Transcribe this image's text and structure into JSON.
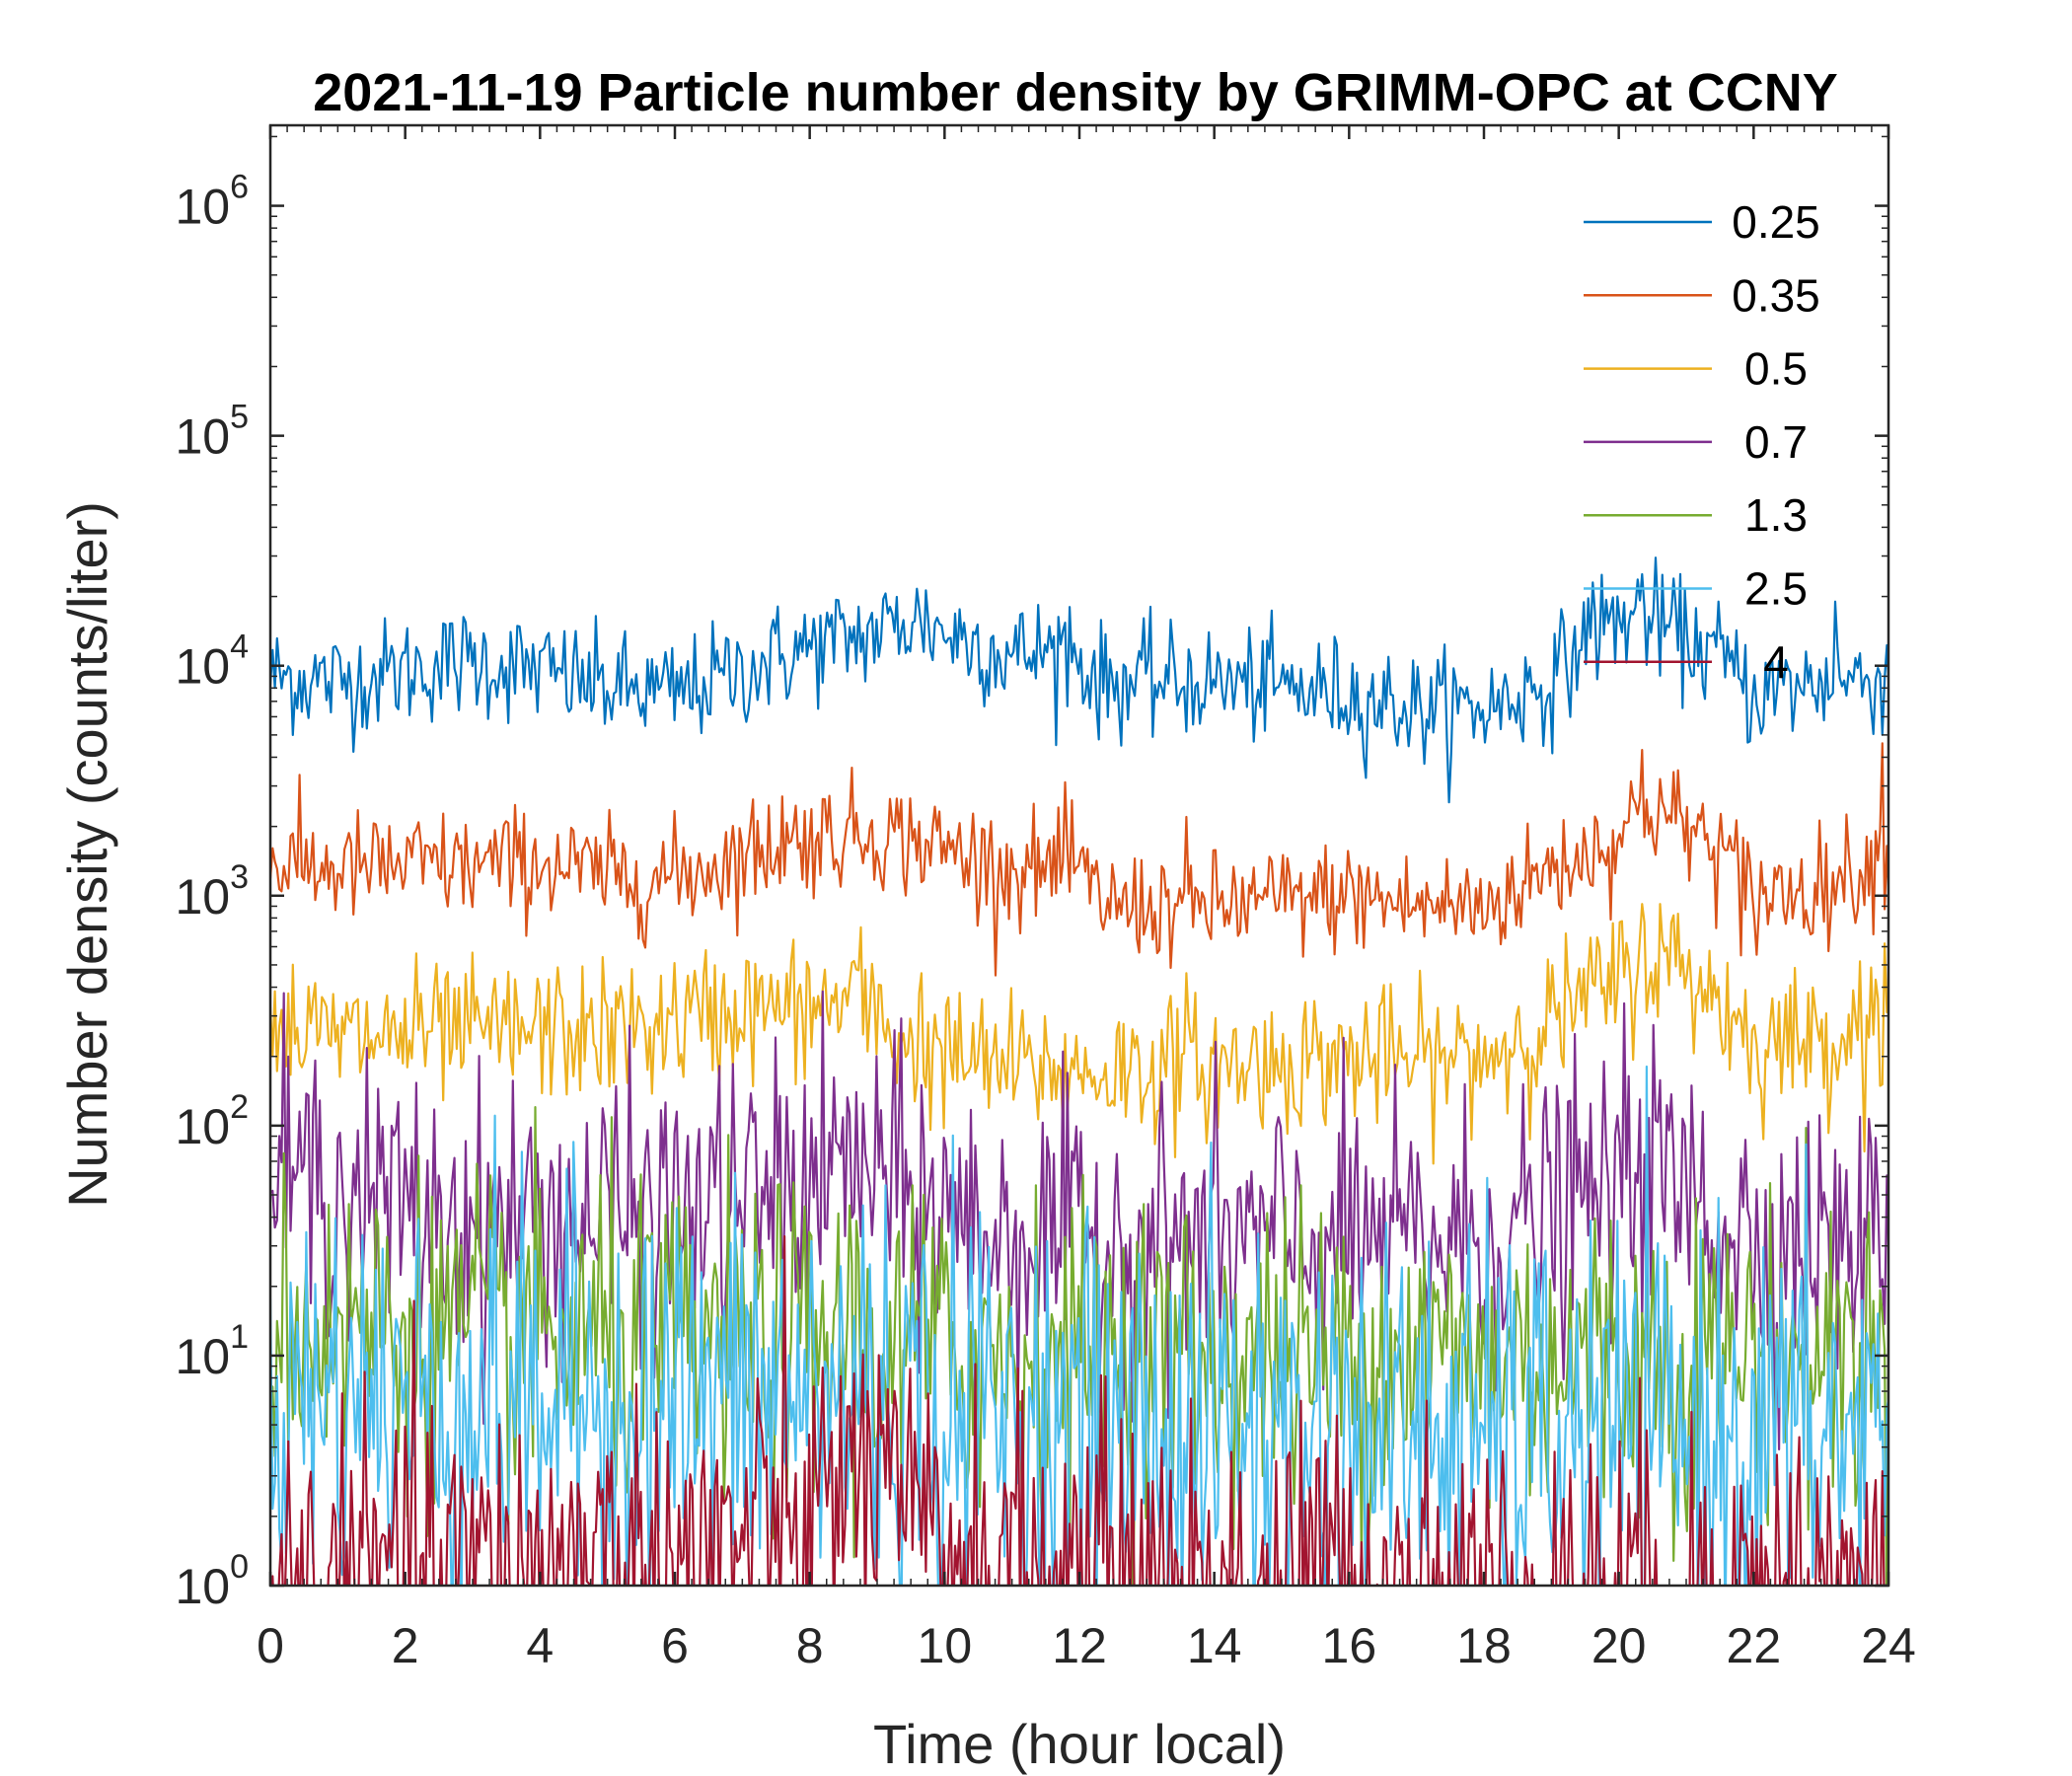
{
  "chart_data": {
    "type": "line",
    "title": "2021-11-19 Particle number density by GRIMM-OPC at CCNY",
    "xlabel": "Time (hour local)",
    "ylabel": "Number density (counts/liter)",
    "xlim": [
      0,
      24
    ],
    "ylim_log10": [
      0,
      6.35
    ],
    "yscale": "log",
    "x_ticks": [
      0,
      2,
      4,
      6,
      8,
      10,
      12,
      14,
      16,
      18,
      20,
      22,
      24
    ],
    "x_tick_labels": [
      "0",
      "2",
      "4",
      "6",
      "8",
      "10",
      "12",
      "14",
      "16",
      "18",
      "20",
      "22",
      "24"
    ],
    "y_ticks_log10": [
      0,
      1,
      2,
      3,
      4,
      5,
      6
    ],
    "y_tick_base": "10",
    "y_tick_exponents": [
      "0",
      "1",
      "2",
      "3",
      "4",
      "5",
      "6"
    ],
    "grid": false,
    "legend_position": "top-right",
    "sample_step_hours": 0.0333,
    "series": [
      {
        "name": "0.25",
        "color": "#0072BD",
        "hours": [
          0,
          1,
          2,
          3,
          4,
          5,
          6,
          7,
          8,
          9,
          9.6,
          10,
          11,
          11.8,
          12.3,
          13,
          14,
          15,
          16,
          17,
          18,
          19,
          19.6,
          20.3,
          21,
          21.5,
          22,
          23,
          24
        ],
        "values": [
          9000,
          8500,
          9500,
          10500,
          9500,
          8000,
          7500,
          9500,
          12000,
          14000,
          16000,
          14000,
          11000,
          12000,
          8500,
          8500,
          8500,
          8000,
          7500,
          6500,
          6500,
          8500,
          14000,
          17000,
          13000,
          11000,
          7500,
          8500,
          9000
        ],
        "noise": 0.12,
        "spikes": [
          {
            "hour": 11.85,
            "value": 18000
          },
          {
            "hour": 20.35,
            "value": 25000
          },
          {
            "hour": 19.6,
            "value": 23000
          },
          {
            "hour": 23.2,
            "value": 19000
          }
        ]
      },
      {
        "name": "0.35",
        "color": "#D95319",
        "hours": [
          0,
          1,
          2,
          3,
          4,
          5,
          6,
          7,
          8,
          9,
          10,
          11,
          11.8,
          12.5,
          13,
          14,
          15,
          16,
          17,
          18,
          19,
          20,
          20.4,
          21,
          21.6,
          22,
          23,
          24
        ],
        "values": [
          1400,
          1300,
          1350,
          1350,
          1400,
          1200,
          1200,
          1500,
          1800,
          1900,
          1600,
          1300,
          1300,
          900,
          900,
          900,
          950,
          1000,
          900,
          900,
          1300,
          1800,
          2500,
          2000,
          1500,
          1000,
          1100,
          1500
        ],
        "noise": 0.12,
        "spikes": [
          {
            "hour": 7.6,
            "value": 2700
          },
          {
            "hour": 11.9,
            "value": 2600
          },
          {
            "hour": 13.6,
            "value": 2200
          },
          {
            "hour": 20.35,
            "value": 4300
          },
          {
            "hour": 23.9,
            "value": 4600
          },
          {
            "hour": 21.8,
            "value": 550
          }
        ]
      },
      {
        "name": "0.5",
        "color": "#EDB120",
        "hours": [
          0,
          1,
          2,
          3,
          4,
          5,
          6,
          7,
          8,
          8.7,
          9.5,
          10,
          11,
          12,
          13,
          14,
          15,
          16,
          17,
          18,
          19,
          20,
          20.5,
          21,
          21.6,
          22,
          23,
          24
        ],
        "values": [
          280,
          240,
          250,
          250,
          260,
          250,
          280,
          320,
          320,
          360,
          220,
          200,
          180,
          170,
          180,
          180,
          190,
          200,
          190,
          200,
          290,
          430,
          550,
          480,
          320,
          230,
          240,
          310
        ],
        "noise": 0.15,
        "spikes": [
          {
            "hour": 8.65,
            "value": 520
          },
          {
            "hour": 9.65,
            "value": 460
          },
          {
            "hour": 13.6,
            "value": 460
          },
          {
            "hour": 20.35,
            "value": 920
          },
          {
            "hour": 23.95,
            "value": 620
          }
        ]
      },
      {
        "name": "0.7",
        "color": "#7E2F8E",
        "hours": [
          0,
          1,
          2,
          3,
          4,
          5,
          6,
          7,
          8,
          8.7,
          9.5,
          10,
          11,
          12,
          13,
          14,
          15,
          16,
          17,
          18,
          19,
          20,
          20.5,
          21,
          22,
          23,
          24
        ],
        "values": [
          65,
          52,
          42,
          38,
          40,
          40,
          42,
          48,
          55,
          70,
          45,
          40,
          33,
          32,
          32,
          31,
          31,
          31,
          31,
          32,
          40,
          55,
          60,
          48,
          32,
          30,
          30
        ],
        "noise": 0.3,
        "spikes": [
          {
            "hour": 8.7,
            "value": 140
          },
          {
            "hour": 9.65,
            "value": 150
          },
          {
            "hour": 20.3,
            "value": 130
          },
          {
            "hour": 21.25,
            "value": 115
          }
        ]
      },
      {
        "name": "1.3",
        "color": "#77AC30",
        "hours": [
          0,
          2,
          4,
          6,
          8,
          10,
          12,
          14,
          16,
          18,
          20,
          22,
          24
        ],
        "values": [
          14,
          13,
          12,
          11,
          11,
          10,
          10,
          10,
          10,
          10,
          10,
          10,
          10
        ],
        "noise": 0.35,
        "spikes": [
          {
            "hour": 8.6,
            "value": 45
          },
          {
            "hour": 9.7,
            "value": 50
          }
        ]
      },
      {
        "name": "2.5",
        "color": "#4DBEEE",
        "hours": [
          0,
          2,
          4,
          6,
          8,
          10,
          12,
          14,
          16,
          18,
          20,
          22,
          24
        ],
        "values": [
          7,
          6.5,
          6.5,
          6.5,
          6.5,
          6,
          5,
          5,
          4.5,
          4.5,
          4.5,
          4.5,
          4.5
        ],
        "noise": 0.45,
        "spikes": [
          {
            "hour": 8.8,
            "value": 45
          }
        ]
      },
      {
        "name": "4",
        "color": "#A2142F",
        "hours": [
          0,
          2,
          4,
          6,
          7,
          8,
          8.7,
          9.5,
          10,
          12,
          14,
          16,
          18,
          20,
          22,
          24
        ],
        "values": [
          1,
          1.2,
          1.3,
          1.4,
          1.6,
          2,
          3,
          1.8,
          1.4,
          1.2,
          1.1,
          1.1,
          1,
          1,
          1,
          1
        ],
        "noise": 0.35,
        "spikes": [
          {
            "hour": 8.85,
            "value": 7
          },
          {
            "hour": 9.1,
            "value": 5
          },
          {
            "hour": 8.55,
            "value": 6
          }
        ]
      }
    ]
  }
}
